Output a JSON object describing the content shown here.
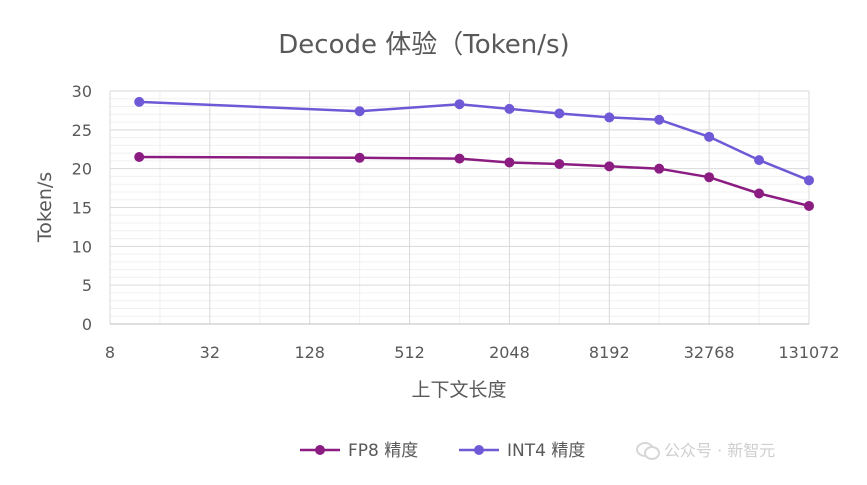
{
  "chart_data": {
    "type": "line",
    "title": "Decode 体验（Token/s)",
    "xlabel": "上下文长度",
    "ylabel": "Token/s",
    "x_scale": "log2",
    "x_ticks": [
      8,
      32,
      128,
      512,
      2048,
      8192,
      32768,
      131072
    ],
    "x_tick_labels": [
      "8",
      "32",
      "128",
      "512",
      "2048",
      "8192",
      "32768",
      "131072"
    ],
    "xlim": [
      8,
      131072
    ],
    "y_ticks": [
      0,
      5,
      10,
      15,
      20,
      25,
      30
    ],
    "y_tick_labels": [
      "0",
      "5",
      "10",
      "15",
      "20",
      "25",
      "30"
    ],
    "ylim": [
      0,
      30
    ],
    "grid": true,
    "legend_position": "bottom",
    "series": [
      {
        "name": "FP8 精度",
        "color": "#8b1d82",
        "x": [
          12,
          256,
          1024,
          2048,
          4096,
          8192,
          16384,
          32768,
          65536,
          131072
        ],
        "y": [
          21.5,
          21.4,
          21.3,
          20.8,
          20.6,
          20.3,
          20.0,
          18.9,
          16.8,
          15.2
        ]
      },
      {
        "name": "INT4 精度",
        "color": "#7059d6",
        "x": [
          12,
          256,
          1024,
          2048,
          4096,
          8192,
          16384,
          32768,
          65536,
          131072
        ],
        "y": [
          28.6,
          27.4,
          28.3,
          27.7,
          27.1,
          26.6,
          26.3,
          24.1,
          21.1,
          18.5
        ]
      }
    ]
  },
  "watermark": {
    "text": "公众号 · 新智元",
    "icon": "wechat-icon"
  }
}
